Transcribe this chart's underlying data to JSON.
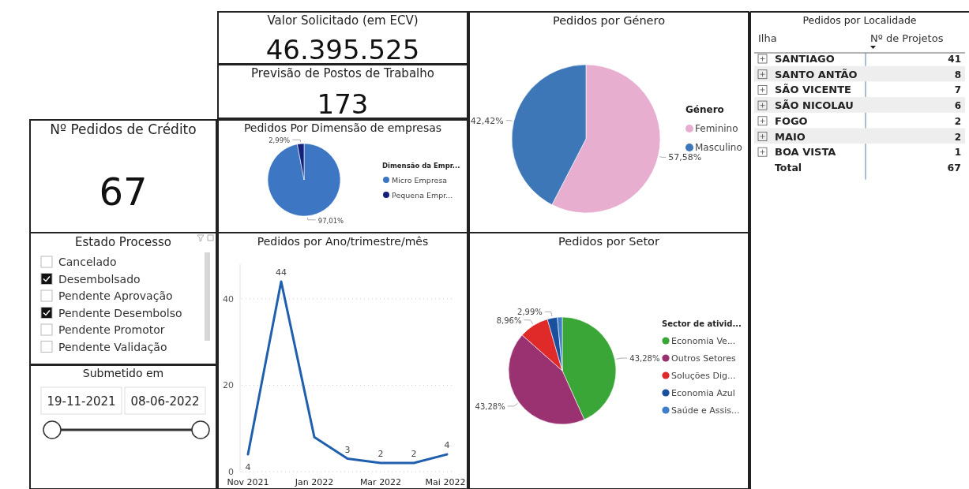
{
  "chart_data": [
    {
      "type": "other",
      "title": "Valor Solicitado (em ECV)",
      "annotations": [
        "46.395.525"
      ]
    },
    {
      "type": "other",
      "title": "Previsão de Postos de Trabalho",
      "annotations": [
        "173"
      ]
    },
    {
      "type": "pie",
      "title": "Pedidos por Género",
      "legend_title": "Género",
      "legend": "right",
      "categories": [
        "Feminino",
        "Masculino"
      ],
      "values": [
        57.58,
        42.42
      ],
      "colors": [
        "#e8aed0",
        "#3d77b8"
      ],
      "value_labels": [
        "57,58%",
        "42,42%"
      ]
    },
    {
      "type": "other",
      "title": "Pedidos por Localidade",
      "xlabel": "Ilha",
      "ylabel": "Nº de Projetos",
      "categories": [
        "SANTIAGO",
        "SANTO ANTÃO",
        "SÃO VICENTE",
        "SÃO NICOLAU",
        "FOGO",
        "MAIO",
        "BOA VISTA"
      ],
      "values": [
        41,
        8,
        7,
        6,
        2,
        2,
        1
      ],
      "data_labels": true,
      "annotations": [
        "Total",
        "67"
      ]
    },
    {
      "type": "other",
      "title": "Nº Pedidos de Crédito",
      "annotations": [
        "67"
      ]
    },
    {
      "type": "pie",
      "title": "Pedidos Por Dimensão de empresas",
      "legend_title": "Dimensão da Empr...",
      "legend": "right",
      "categories": [
        "Micro Empresa",
        "Pequena Empr..."
      ],
      "values": [
        97.01,
        2.99
      ],
      "colors": [
        "#3d77c4",
        "#14207a"
      ],
      "value_labels": [
        "97,01%",
        "2,99%"
      ]
    },
    {
      "type": "other",
      "title": "Estado Processo",
      "categories": [
        "Cancelado",
        "Desembolsado",
        "Pendente Aprovação",
        "Pendente Desembolso",
        "Pendente Promotor",
        "Pendente Validação"
      ],
      "colors": [
        "#ffffff",
        "#111111",
        "#ffffff",
        "#111111",
        "#ffffff",
        "#ffffff"
      ]
    },
    {
      "type": "other",
      "title": "Submetido em",
      "annotations": [
        "19-11-2021",
        "08-06-2022"
      ]
    },
    {
      "type": "line",
      "title": "Pedidos por Ano/trimestre/mês",
      "categories": [
        "Nov 2021",
        null,
        "Jan 2022",
        null,
        "Mar 2022",
        null,
        "Mai 2022"
      ],
      "values": [
        4,
        44,
        8,
        3,
        2,
        2,
        4
      ],
      "color": "#1f5fad",
      "value_labels": [
        "4",
        "44",
        null,
        "3",
        "2",
        "2",
        "4"
      ],
      "ylim": [
        0,
        48
      ],
      "yticks": [
        0,
        20,
        40
      ],
      "grid": "y",
      "marker": "none",
      "line_style": "solid"
    },
    {
      "type": "pie",
      "title": "Pedidos por Setor",
      "legend_title": "Sector de ativid...",
      "legend": "right",
      "categories": [
        "Economia Ve...",
        "Outros Setores",
        "Soluções Dig...",
        "Economia Azul",
        "Saúde e Assis..."
      ],
      "values": [
        43.28,
        43.28,
        8.96,
        2.99,
        1.49
      ],
      "colors": [
        "#3aa637",
        "#9a3272",
        "#e02a2a",
        "#1a4f9e",
        "#3f7fc8"
      ],
      "value_labels": [
        "43,28%",
        "43,28%",
        "8,96%",
        "2,99%",
        null
      ]
    }
  ]
}
